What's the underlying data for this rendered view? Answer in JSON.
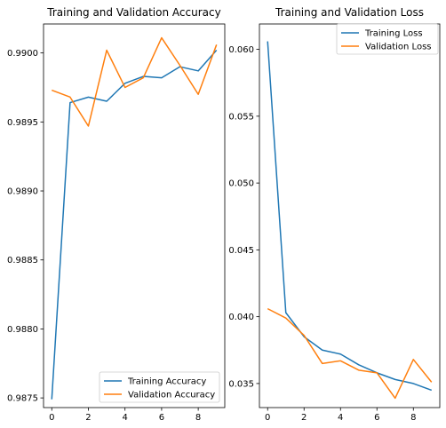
{
  "chart_data": [
    {
      "type": "line",
      "title": "Training and Validation Accuracy",
      "xlabel": "",
      "ylabel": "",
      "xlim": [
        -0.45,
        9.45
      ],
      "ylim": [
        0.98743,
        0.99021
      ],
      "xticks": [
        0,
        2,
        4,
        6,
        8
      ],
      "xtick_labels": [
        "0",
        "2",
        "4",
        "6",
        "8"
      ],
      "yticks": [
        0.9875,
        0.988,
        0.9885,
        0.989,
        0.9895,
        0.99
      ],
      "ytick_labels": [
        "0.9875",
        "0.9880",
        "0.9885",
        "0.9890",
        "0.9895",
        "0.9900"
      ],
      "grid": false,
      "legend_placement": "lower-right",
      "x": [
        0,
        1,
        2,
        3,
        4,
        5,
        6,
        7,
        8,
        9
      ],
      "series": [
        {
          "name": "Training Accuracy",
          "color": "#1f77b4",
          "values": [
            0.98749,
            0.98964,
            0.98968,
            0.98965,
            0.98978,
            0.98983,
            0.98982,
            0.9899,
            0.98987,
            0.99002
          ]
        },
        {
          "name": "Validation Accuracy",
          "color": "#ff7f0e",
          "values": [
            0.98973,
            0.98968,
            0.98947,
            0.99002,
            0.98975,
            0.98982,
            0.99011,
            0.98991,
            0.9897,
            0.99006
          ]
        }
      ]
    },
    {
      "type": "line",
      "title": "Training and Validation Loss",
      "xlabel": "",
      "ylabel": "",
      "xlim": [
        -0.45,
        9.45
      ],
      "ylim": [
        0.0332,
        0.0619
      ],
      "xticks": [
        0,
        2,
        4,
        6,
        8
      ],
      "xtick_labels": [
        "0",
        "2",
        "4",
        "6",
        "8"
      ],
      "yticks": [
        0.035,
        0.04,
        0.045,
        0.05,
        0.055,
        0.06
      ],
      "ytick_labels": [
        "0.035",
        "0.040",
        "0.045",
        "0.050",
        "0.055",
        "0.060"
      ],
      "grid": false,
      "legend_placement": "top-right",
      "x": [
        0,
        1,
        2,
        3,
        4,
        5,
        6,
        7,
        8,
        9
      ],
      "series": [
        {
          "name": "Training Loss",
          "color": "#1f77b4",
          "values": [
            0.0606,
            0.0403,
            0.0385,
            0.0375,
            0.0372,
            0.0364,
            0.0358,
            0.0353,
            0.035,
            0.0345
          ]
        },
        {
          "name": "Validation Loss",
          "color": "#ff7f0e",
          "values": [
            0.0406,
            0.0399,
            0.0386,
            0.0365,
            0.0367,
            0.036,
            0.0358,
            0.0339,
            0.0368,
            0.0351
          ]
        }
      ]
    }
  ]
}
